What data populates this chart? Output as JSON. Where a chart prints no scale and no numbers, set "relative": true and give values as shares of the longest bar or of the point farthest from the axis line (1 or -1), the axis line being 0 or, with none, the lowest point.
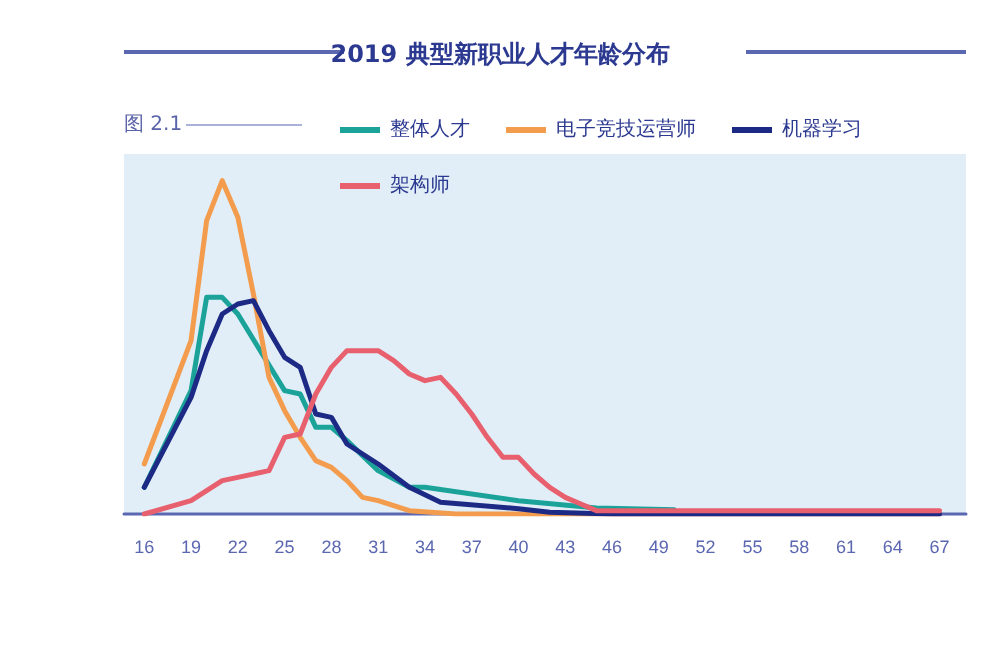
{
  "chart_data": {
    "type": "line",
    "title": "2019 典型新职业人才年龄分布",
    "annotations": [
      "图 2.1"
    ],
    "relative": true,
    "xlim": [
      14.7,
      68.7
    ],
    "xticks": [
      16,
      19,
      22,
      25,
      28,
      31,
      34,
      37,
      40,
      43,
      46,
      49,
      52,
      55,
      58,
      61,
      64,
      67
    ],
    "grid": false,
    "legend": "top",
    "marker": "none",
    "line_style": "solid",
    "series": [
      {
        "name": "整体人才",
        "color": "#1ba39a",
        "x": [
          16,
          19,
          20,
          21,
          22,
          25,
          26,
          27,
          28,
          29,
          31,
          33,
          34,
          40,
          45,
          50
        ],
        "values": [
          0.08,
          0.37,
          0.65,
          0.65,
          0.6,
          0.37,
          0.36,
          0.26,
          0.26,
          0.22,
          0.13,
          0.08,
          0.08,
          0.04,
          0.018,
          0.013
        ]
      },
      {
        "name": "电子竞技运营师",
        "color": "#f39c4e",
        "x": [
          16,
          19,
          20,
          21,
          22,
          23,
          24,
          25,
          26,
          27,
          28,
          29,
          30,
          31,
          33,
          36,
          67
        ],
        "values": [
          0.15,
          0.52,
          0.88,
          1,
          0.89,
          0.66,
          0.41,
          0.31,
          0.23,
          0.16,
          0.14,
          0.1,
          0.05,
          0.04,
          0.01,
          0,
          0
        ]
      },
      {
        "name": "机器学习",
        "color": "#1c2a86",
        "x": [
          16,
          19,
          20,
          21,
          22,
          23,
          24,
          25,
          26,
          27,
          28,
          29,
          31,
          33,
          35,
          40,
          42,
          46,
          67
        ],
        "values": [
          0.08,
          0.35,
          0.49,
          0.6,
          0.63,
          0.64,
          0.55,
          0.47,
          0.44,
          0.3,
          0.29,
          0.21,
          0.15,
          0.08,
          0.035,
          0.016,
          0.005,
          0,
          0
        ]
      },
      {
        "name": "架构师",
        "color": "#e8606e",
        "x": [
          16,
          19,
          21,
          22,
          24,
          25,
          26,
          27,
          28,
          29,
          30,
          31,
          32,
          33,
          34,
          35,
          36,
          37,
          38,
          39,
          40,
          41,
          42,
          43,
          44,
          45,
          67
        ],
        "values": [
          0,
          0.04,
          0.1,
          0.11,
          0.13,
          0.23,
          0.24,
          0.36,
          0.44,
          0.49,
          0.49,
          0.49,
          0.46,
          0.42,
          0.4,
          0.41,
          0.36,
          0.3,
          0.23,
          0.17,
          0.17,
          0.12,
          0.08,
          0.05,
          0.03,
          0.01,
          0.01
        ]
      }
    ]
  }
}
